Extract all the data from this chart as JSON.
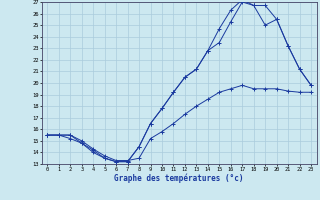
{
  "xlabel": "Graphe des températures (°c)",
  "xlim": [
    -0.5,
    23.5
  ],
  "ylim": [
    13,
    27
  ],
  "xticks": [
    0,
    1,
    2,
    3,
    4,
    5,
    6,
    7,
    8,
    9,
    10,
    11,
    12,
    13,
    14,
    15,
    16,
    17,
    18,
    19,
    20,
    21,
    22,
    23
  ],
  "yticks": [
    13,
    14,
    15,
    16,
    17,
    18,
    19,
    20,
    21,
    22,
    23,
    24,
    25,
    26,
    27
  ],
  "line1_x": [
    0,
    1,
    2,
    3,
    4,
    5,
    6,
    7,
    8,
    9,
    10,
    11,
    12,
    13,
    14,
    15,
    16,
    17,
    18,
    19,
    20,
    21,
    22,
    23
  ],
  "line1_y": [
    15.5,
    15.5,
    15.5,
    15.0,
    14.3,
    13.7,
    13.3,
    13.3,
    13.5,
    15.2,
    15.8,
    16.5,
    17.3,
    18.0,
    18.6,
    19.2,
    19.5,
    19.8,
    19.5,
    19.5,
    19.5,
    19.3,
    19.2,
    19.2
  ],
  "line2_x": [
    0,
    1,
    2,
    3,
    4,
    5,
    6,
    7,
    8,
    9,
    10,
    11,
    12,
    13,
    14,
    15,
    16,
    17,
    18,
    19,
    20,
    21,
    22,
    23
  ],
  "line2_y": [
    15.5,
    15.5,
    15.5,
    14.8,
    14.2,
    13.5,
    13.2,
    13.2,
    14.5,
    16.5,
    17.8,
    19.2,
    20.5,
    21.2,
    22.8,
    23.5,
    25.3,
    27.0,
    26.7,
    25.0,
    25.5,
    23.2,
    21.2,
    19.8
  ],
  "line3_x": [
    0,
    1,
    2,
    3,
    4,
    5,
    6,
    7,
    8,
    9,
    10,
    11,
    12,
    13,
    14,
    15,
    16,
    17,
    18,
    19,
    20,
    21,
    22,
    23
  ],
  "line3_y": [
    15.5,
    15.5,
    15.2,
    14.8,
    14.0,
    13.5,
    13.2,
    13.2,
    14.5,
    16.5,
    17.8,
    19.2,
    20.5,
    21.2,
    22.8,
    24.7,
    26.3,
    27.2,
    26.7,
    26.7,
    25.5,
    23.2,
    21.2,
    19.8
  ],
  "line_color": "#1a3a9f",
  "bg_color": "#cce8f0",
  "grid_color": "#aaccdd",
  "marker": "+"
}
